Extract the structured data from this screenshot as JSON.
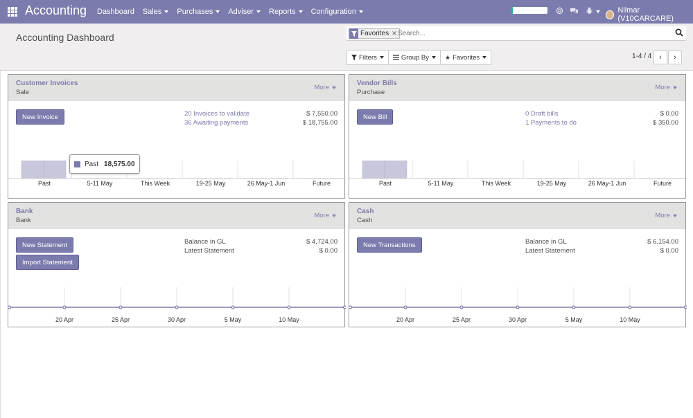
{
  "navbar": {
    "brand": "Accounting",
    "menu": [
      {
        "label": "Dashboard",
        "dropdown": false
      },
      {
        "label": "Sales",
        "dropdown": true
      },
      {
        "label": "Purchases",
        "dropdown": true
      },
      {
        "label": "Adviser",
        "dropdown": true
      },
      {
        "label": "Reports",
        "dropdown": true
      },
      {
        "label": "Configuration",
        "dropdown": true
      }
    ],
    "user": "Nilmar (V10CARCARE)",
    "progress_fraction": 0.04,
    "colors": {
      "navbar": "#7c7bad",
      "accent": "#7c7bad",
      "progress": "#21b799"
    }
  },
  "control_panel": {
    "title": "Accounting Dashboard",
    "facet_label": "Favorites",
    "search_placeholder": "Search...",
    "filters_label": "Filters",
    "group_by_label": "Group By",
    "favorites_label": "Favorites",
    "pager": "1-4 / 4"
  },
  "cards": {
    "customer_invoices": {
      "title": "Customer Invoices",
      "subtitle": "Sale",
      "more": "More",
      "button": "New Invoice",
      "rows": [
        {
          "label": "20 Invoices to validate",
          "value": "$ 7,550.00"
        },
        {
          "label": "36 Awaiting payments",
          "value": "$ 18,755.00"
        }
      ],
      "tooltip": {
        "label": "Past",
        "value": "18,575.00"
      }
    },
    "vendor_bills": {
      "title": "Vendor Bills",
      "subtitle": "Purchase",
      "more": "More",
      "button": "New Bill",
      "rows": [
        {
          "label": "0 Draft bills",
          "value": "$ 0.00"
        },
        {
          "label": "1 Payments to do",
          "value": "$ 350.00"
        }
      ]
    },
    "bank": {
      "title": "Bank",
      "subtitle": "Bank",
      "more": "More",
      "buttons": [
        "New Statement",
        "Import Statement"
      ],
      "rows": [
        {
          "label": "Balance in GL",
          "value": "$ 4,724.00"
        },
        {
          "label": "Latest Statement",
          "value": "$ 0.00"
        }
      ]
    },
    "cash": {
      "title": "Cash",
      "subtitle": "Cash",
      "more": "More",
      "button": "New Transactions",
      "rows": [
        {
          "label": "Balance in GL",
          "value": "$ 6,154.00"
        },
        {
          "label": "Latest Statement",
          "value": "$ 0.00"
        }
      ]
    }
  },
  "chart_data": [
    {
      "type": "bar",
      "categories": [
        "Past",
        "5-11 May",
        "This Week",
        "19-25 May",
        "26 May-1 Jun",
        "Future"
      ],
      "values": [
        18575,
        0,
        0,
        0,
        0,
        0
      ],
      "ylim": [
        0,
        18575
      ]
    },
    {
      "type": "bar",
      "categories": [
        "Past",
        "5-11 May",
        "This Week",
        "19-25 May",
        "26 May-1 Jun",
        "Future"
      ],
      "values": [
        350,
        0,
        0,
        0,
        0,
        0
      ],
      "ylim": [
        0,
        350
      ]
    },
    {
      "type": "line",
      "x": [
        "20 Apr",
        "25 Apr",
        "30 Apr",
        "5 May",
        "10 May"
      ],
      "values": [
        0,
        0,
        0,
        0,
        0
      ]
    },
    {
      "type": "line",
      "x": [
        "20 Apr",
        "25 Apr",
        "30 Apr",
        "5 May",
        "10 May"
      ],
      "values": [
        0,
        0,
        0,
        0,
        0
      ]
    }
  ]
}
